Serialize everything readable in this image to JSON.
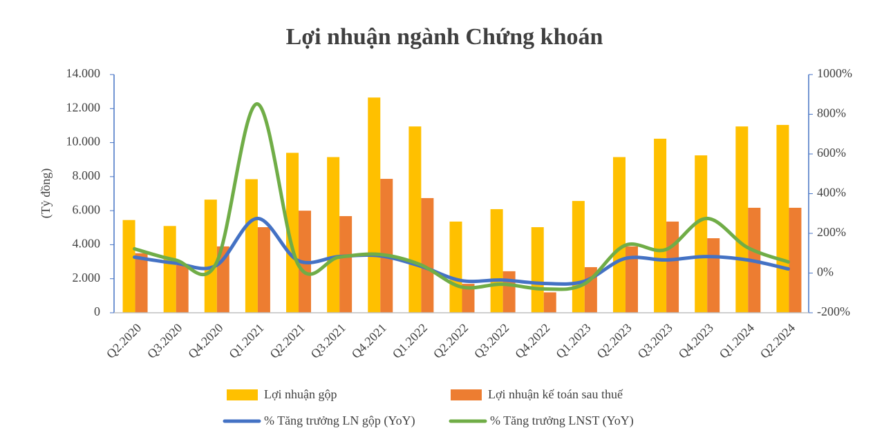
{
  "chart_data": {
    "type": "bar-line",
    "title": "Lợi nhuận ngành Chứng khoán",
    "y_label": "(Tỷ đồng)",
    "categories": [
      "Q2.2020",
      "Q3.2020",
      "Q4.2020",
      "Q1.2021",
      "Q2.2021",
      "Q3.2021",
      "Q4.2021",
      "Q1.2022",
      "Q2.2022",
      "Q3.2022",
      "Q4.2022",
      "Q1.2023",
      "Q2.2023",
      "Q3.2023",
      "Q4.2023",
      "Q1.2024",
      "Q2.2024"
    ],
    "series": [
      {
        "name": "Lợi nhuận gộp",
        "type": "bar",
        "color": "#ffc000",
        "values": [
          5450,
          5100,
          6650,
          7850,
          9400,
          9150,
          12650,
          10950,
          5360,
          6090,
          5030,
          6570,
          9150,
          10230,
          9250,
          10950,
          11040
        ]
      },
      {
        "name": "Lợi nhuận kế toán sau thuế",
        "type": "bar",
        "color": "#ed7d31",
        "values": [
          3500,
          2800,
          3900,
          5030,
          6000,
          5680,
          7870,
          6740,
          1700,
          2440,
          1200,
          2680,
          3900,
          5360,
          4380,
          6170,
          6170
        ]
      },
      {
        "name": "% Tăng trưởng LN gộp (YoY)",
        "type": "line",
        "axis": "y2",
        "color": "#4472c4",
        "values": [
          80,
          50,
          38,
          275,
          63,
          83,
          87,
          35,
          -38,
          -35,
          -52,
          -42,
          73,
          66,
          83,
          66,
          21
        ]
      },
      {
        "name": "% Tăng trưởng LNST (YoY)",
        "type": "line",
        "axis": "y2",
        "color": "#70ad47",
        "values": [
          122,
          66,
          49,
          852,
          45,
          80,
          94,
          42,
          -70,
          -56,
          -80,
          -56,
          139,
          118,
          275,
          129,
          56
        ]
      }
    ],
    "ylim": [
      0,
      14000
    ],
    "yticks": [
      0,
      {
        "value": 2000,
        "label": "2.000"
      },
      {
        "value": 4000,
        "label": "4.000"
      },
      {
        "value": 6000,
        "label": "6.000"
      },
      {
        "value": 8000,
        "label": "8.000"
      },
      {
        "value": 10000,
        "label": "10.000"
      },
      {
        "value": 12000,
        "label": "12.000"
      },
      {
        "value": 14000,
        "label": "14.000"
      }
    ],
    "y2lim": [
      -200,
      1000
    ],
    "y2ticks": [
      {
        "value": -200,
        "label": "-200%"
      },
      {
        "value": 0,
        "label": "0%"
      },
      {
        "value": 200,
        "label": "200%"
      },
      {
        "value": 400,
        "label": "400%"
      },
      {
        "value": 600,
        "label": "600%"
      },
      {
        "value": 800,
        "label": "800%"
      },
      {
        "value": 1000,
        "label": "1000%"
      }
    ],
    "grid": false,
    "legend": "bottom"
  }
}
